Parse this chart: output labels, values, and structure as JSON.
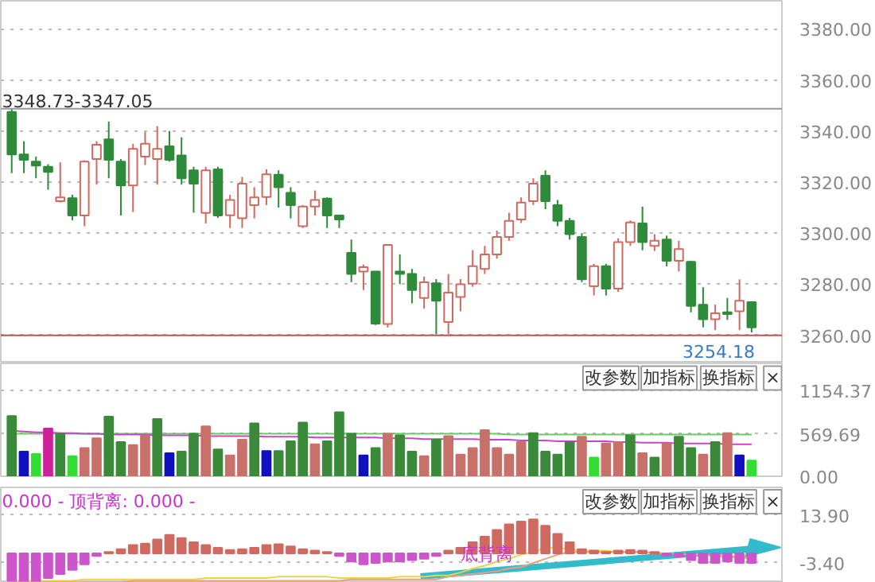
{
  "chart_data": [
    {
      "type": "candlestick",
      "categories": [
        null,
        null,
        null,
        null,
        null,
        null,
        null,
        null,
        null,
        null,
        null,
        null,
        null,
        null,
        null,
        null,
        null,
        null,
        null,
        null,
        null,
        null,
        null,
        null,
        null,
        null,
        null,
        null,
        null,
        null,
        null,
        null,
        null,
        null,
        null,
        null,
        null,
        null,
        null,
        null,
        null,
        null,
        null,
        null,
        null,
        null,
        null,
        null,
        null,
        null,
        null,
        null,
        null,
        null,
        null,
        null,
        null,
        null,
        null,
        null,
        null,
        null
      ],
      "ohlc": [
        [
          3347.5,
          3348.7,
          3323.5,
          3330.8
        ],
        [
          3330.8,
          3336,
          3323.5,
          3328.7
        ],
        [
          3328,
          3330,
          3321.5,
          3326.5
        ],
        [
          3326,
          3327,
          3317,
          3324
        ],
        [
          3312.5,
          3327.7,
          3312,
          3314
        ],
        [
          3313.7,
          3315,
          3305,
          3306.9
        ],
        [
          3306.9,
          3328.5,
          3302.7,
          3328
        ],
        [
          3329,
          3336,
          3319,
          3334.6
        ],
        [
          3336.7,
          3343.7,
          3321.5,
          3328.7
        ],
        [
          3328,
          3329,
          3306.9,
          3318.7
        ],
        [
          3318.7,
          3335,
          3308.3,
          3333
        ],
        [
          3330,
          3339.6,
          3326.7,
          3335
        ],
        [
          3329,
          3341.9,
          3319,
          3333
        ],
        [
          3334,
          3340,
          3328,
          3328.7
        ],
        [
          3330.4,
          3337.5,
          3319,
          3321.5
        ],
        [
          3324.6,
          3326,
          3308,
          3319.4
        ],
        [
          3307.9,
          3326,
          3303.8,
          3324.6
        ],
        [
          3325,
          3326,
          3306,
          3306.9
        ],
        [
          3307,
          3315,
          3302,
          3313
        ],
        [
          3305.8,
          3322,
          3302,
          3319.4
        ],
        [
          3311,
          3318,
          3305.8,
          3314
        ],
        [
          3314.2,
          3325,
          3311,
          3323
        ],
        [
          3322.9,
          3324.6,
          3310,
          3318
        ],
        [
          3315.8,
          3318,
          3305.8,
          3311
        ],
        [
          3302.7,
          3311,
          3302,
          3310.4
        ],
        [
          3310.4,
          3316.7,
          3306.9,
          3313
        ],
        [
          3313.5,
          3314,
          3302,
          3306.9
        ],
        [
          3306.9,
          3307,
          3302,
          3305.4
        ],
        [
          3292.3,
          3297.5,
          3280.8,
          3284
        ],
        [
          3285,
          3287.7,
          3277.7,
          3286.7
        ],
        [
          3285,
          3285,
          3264,
          3264.6
        ],
        [
          3264.4,
          3295.4,
          3263,
          3295.4
        ],
        [
          3285,
          3291.7,
          3280,
          3284
        ],
        [
          3284,
          3286,
          3272.5,
          3277.7
        ],
        [
          3274.6,
          3283,
          3270.4,
          3280.8
        ],
        [
          3280.4,
          3282,
          3260.4,
          3273.5
        ],
        [
          3265.2,
          3284,
          3260.4,
          3276.7
        ],
        [
          3275,
          3282,
          3269.4,
          3280
        ],
        [
          3280.2,
          3293.3,
          3279,
          3287.1
        ],
        [
          3286,
          3295,
          3284,
          3291.7
        ],
        [
          3291.7,
          3301,
          3290,
          3298.5
        ],
        [
          3298.5,
          3308,
          3297,
          3304.8
        ],
        [
          3305.4,
          3314,
          3304,
          3312
        ],
        [
          3312.5,
          3321.5,
          3311,
          3319.4
        ],
        [
          3322.5,
          3324.6,
          3309.4,
          3312.5
        ],
        [
          3311,
          3313,
          3302.7,
          3304.8
        ],
        [
          3304.8,
          3306,
          3297.5,
          3299.6
        ],
        [
          3298.5,
          3300,
          3280.8,
          3281.9
        ],
        [
          3279.2,
          3288,
          3275.6,
          3287.1
        ],
        [
          3287.1,
          3288,
          3275.6,
          3278.3
        ],
        [
          3278.3,
          3298,
          3277,
          3296.5
        ],
        [
          3296.5,
          3305,
          3295,
          3304.2
        ],
        [
          3303.8,
          3310.4,
          3293.3,
          3296.5
        ],
        [
          3295,
          3299.6,
          3293,
          3297
        ],
        [
          3297.5,
          3299,
          3287,
          3289.2
        ],
        [
          3289.2,
          3297,
          3285,
          3293.8
        ],
        [
          3288.8,
          3289,
          3269,
          3271.5
        ],
        [
          3272,
          3278.8,
          3263.1,
          3266.3
        ],
        [
          3266.3,
          3272,
          3262,
          3268.6
        ],
        [
          3269,
          3274.6,
          3266,
          3268.3
        ],
        [
          3269.4,
          3281.9,
          3262,
          3273.5
        ],
        [
          3273,
          3273,
          3261.1,
          3263.1
        ]
      ],
      "colors": [
        "#2e8b3a",
        "#2e8b3a",
        "#2e8b3a",
        "#2e8b3a",
        "#d06a60",
        "#2e8b3a",
        "#d06a60",
        "#d06a60",
        "#2e8b3a",
        "#2e8b3a",
        "#d06a60",
        "#d06a60",
        "#d06a60",
        "#2e8b3a",
        "#2e8b3a",
        "#2e8b3a",
        "#d06a60",
        "#2e8b3a",
        "#d06a60",
        "#d06a60",
        "#d06a60",
        "#d06a60",
        "#2e8b3a",
        "#2e8b3a",
        "#d06a60",
        "#d06a60",
        "#2e8b3a",
        "#2e8b3a",
        "#2e8b3a",
        "#d06a60",
        "#2e8b3a",
        "#d06a60",
        "#2e8b3a",
        "#2e8b3a",
        "#d06a60",
        "#2e8b3a",
        "#d06a60",
        "#d06a60",
        "#d06a60",
        "#d06a60",
        "#d06a60",
        "#d06a60",
        "#d06a60",
        "#d06a60",
        "#2e8b3a",
        "#2e8b3a",
        "#2e8b3a",
        "#2e8b3a",
        "#d06a60",
        "#2e8b3a",
        "#d06a60",
        "#d06a60",
        "#2e8b3a",
        "#d06a60",
        "#2e8b3a",
        "#d06a60",
        "#2e8b3a",
        "#2e8b3a",
        "#d06a60",
        "#2e8b3a",
        "#d06a60",
        "#2e8b3a"
      ],
      "ylim": [
        3249,
        3391
      ],
      "yticks": [
        {
          "value": 3260,
          "label": "3260.00"
        },
        {
          "value": 3280,
          "label": "3280.00"
        },
        {
          "value": 3300,
          "label": "3300.00"
        },
        {
          "value": 3320,
          "label": "3320.00"
        },
        {
          "value": 3340,
          "label": "3340.00"
        },
        {
          "value": 3360,
          "label": "3360.00"
        },
        {
          "value": 3380,
          "label": "3380.00"
        }
      ],
      "grid": "y",
      "tick_labels": "y",
      "ref_lines": [
        {
          "axis": "y",
          "value": 3348.73,
          "label": "3348.73-3347.05",
          "color": "#999999"
        },
        {
          "axis": "y",
          "value": 3260,
          "color": "#c0504d"
        }
      ],
      "annotations": [
        "3254.18"
      ]
    },
    {
      "type": "bar",
      "categories": [
        null,
        null,
        null,
        null,
        null,
        null,
        null,
        null,
        null,
        null,
        null,
        null,
        null,
        null,
        null,
        null,
        null,
        null,
        null,
        null,
        null,
        null,
        null,
        null,
        null,
        null,
        null,
        null,
        null,
        null,
        null,
        null,
        null,
        null,
        null,
        null,
        null,
        null,
        null,
        null,
        null,
        null,
        null,
        null,
        null,
        null,
        null,
        null,
        null,
        null,
        null,
        null,
        null,
        null,
        null,
        null,
        null,
        null,
        null,
        null,
        null,
        null
      ],
      "series": [
        {
          "values": [
            810,
            330,
            300,
            640,
            570,
            270,
            380,
            510,
            800,
            460,
            420,
            550,
            770,
            310,
            330,
            570,
            670,
            360,
            280,
            490,
            710,
            340,
            340,
            470,
            720,
            430,
            470,
            860,
            570,
            280,
            380,
            570,
            550,
            330,
            270,
            490,
            540,
            290,
            380,
            620,
            380,
            290,
            460,
            580,
            330,
            290,
            460,
            530,
            250,
            440,
            460,
            550,
            310,
            250,
            440,
            530,
            380,
            290,
            460,
            580,
            280,
            210
          ],
          "colors": [
            "#3a8a3a",
            "#1010c0",
            "#33dd33",
            "#cc2299",
            "#3a8a3a",
            "#33dd33",
            "#c8706a",
            "#c8706a",
            "#3a8a3a",
            "#3a8a3a",
            "#c8706a",
            "#c8706a",
            "#3a8a3a",
            "#1010c0",
            "#3a8a3a",
            "#3a8a3a",
            "#c8706a",
            "#3a8a3a",
            "#c8706a",
            "#c8706a",
            "#3a8a3a",
            "#1010c0",
            "#3a8a3a",
            "#3a8a3a",
            "#3a8a3a",
            "#c8706a",
            "#3a8a3a",
            "#3a8a3a",
            "#3a8a3a",
            "#1010c0",
            "#3a8a3a",
            "#c8706a",
            "#3a8a3a",
            "#3a8a3a",
            "#c8706a",
            "#3a8a3a",
            "#c8706a",
            "#c8706a",
            "#c8706a",
            "#c8706a",
            "#c8706a",
            "#c8706a",
            "#c8706a",
            "#3a8a3a",
            "#3a8a3a",
            "#3a8a3a",
            "#3a8a3a",
            "#c8706a",
            "#33dd33",
            "#c8706a",
            "#c8706a",
            "#3a8a3a",
            "#c8706a",
            "#3a8a3a",
            "#c8706a",
            "#3a8a3a",
            "#3a8a3a",
            "#c8706a",
            "#3a8a3a",
            "#c8706a",
            "#1010c0",
            "#33dd33"
          ]
        },
        {
          "type": "line",
          "color": "#66cc66",
          "values": [
            570,
            570,
            570,
            570,
            570,
            570,
            570,
            570,
            570,
            570,
            570,
            570,
            570,
            570,
            570,
            570,
            570,
            570,
            570,
            570,
            570,
            570,
            570,
            570,
            570,
            570,
            570,
            570,
            570,
            570,
            570,
            570,
            570,
            570,
            570,
            570,
            570,
            570,
            570,
            570,
            570,
            560,
            560,
            560,
            560,
            560,
            560,
            560,
            560,
            560,
            560,
            560,
            560,
            560,
            560,
            560,
            560,
            560,
            560,
            560,
            560,
            560
          ]
        },
        {
          "type": "line",
          "color": "#cc44cc",
          "values": [
            610,
            600,
            590,
            590,
            580,
            580,
            570,
            570,
            560,
            560,
            560,
            560,
            550,
            550,
            550,
            550,
            540,
            540,
            540,
            540,
            540,
            530,
            530,
            530,
            530,
            520,
            520,
            520,
            520,
            520,
            520,
            510,
            510,
            510,
            500,
            500,
            500,
            500,
            500,
            490,
            490,
            490,
            480,
            480,
            480,
            470,
            470,
            470,
            470,
            470,
            460,
            460,
            450,
            450,
            450,
            440,
            440,
            440,
            440,
            430,
            430,
            430
          ]
        }
      ],
      "ylim": [
        0,
        1516
      ],
      "yticks": [
        {
          "value": 0,
          "label": "0.00"
        },
        {
          "value": 569.69,
          "label": "569.69"
        },
        {
          "value": 1154.37,
          "label": "1154.37"
        }
      ],
      "grid": "y",
      "tick_labels": "y",
      "annotations": [
        "改参数",
        "加指标",
        "换指标",
        "×"
      ]
    },
    {
      "type": "bar",
      "categories": [
        null,
        null,
        null,
        null,
        null,
        null,
        null,
        null,
        null,
        null,
        null,
        null,
        null,
        null,
        null,
        null,
        null,
        null,
        null,
        null,
        null,
        null,
        null,
        null,
        null,
        null,
        null,
        null,
        null,
        null,
        null,
        null,
        null,
        null,
        null,
        null,
        null,
        null,
        null,
        null,
        null,
        null,
        null,
        null,
        null,
        null,
        null,
        null,
        null,
        null,
        null,
        null,
        null,
        null,
        null,
        null,
        null,
        null,
        null,
        null,
        null,
        null
      ],
      "series": [
        {
          "values": [
            -10,
            -10,
            -10,
            -9,
            -7.5,
            -6,
            -4,
            -1,
            0.5,
            1.5,
            3,
            3.5,
            5,
            6.7,
            5.5,
            4,
            3,
            2,
            1.2,
            1.5,
            2,
            3,
            3.3,
            2.5,
            1.5,
            1,
            0.5,
            -1,
            -3,
            -4,
            -3.5,
            -3,
            -3,
            -2.5,
            -2,
            -1,
            1,
            2,
            4,
            6,
            8.5,
            10.5,
            11.5,
            12.3,
            10,
            7,
            4,
            1.5,
            1,
            0.5,
            1,
            1.2,
            1,
            0.5,
            -0.8,
            -1.2,
            -2.5,
            -3.5,
            -3.5,
            -3,
            -3.5,
            -3.5
          ],
          "colors": [
            "#cc55cc",
            "#cc55cc",
            "#cc55cc",
            "#cc55cc",
            "#cc55cc",
            "#cc55cc",
            "#cc55cc",
            "#cc55cc",
            "#d06a60",
            "#d06a60",
            "#d06a60",
            "#d06a60",
            "#d06a60",
            "#d06a60",
            "#d06a60",
            "#d06a60",
            "#d06a60",
            "#d06a60",
            "#d06a60",
            "#d06a60",
            "#d06a60",
            "#d06a60",
            "#d06a60",
            "#d06a60",
            "#d06a60",
            "#d06a60",
            "#d06a60",
            "#cc55cc",
            "#cc55cc",
            "#cc55cc",
            "#cc55cc",
            "#cc55cc",
            "#cc55cc",
            "#cc55cc",
            "#cc55cc",
            "#cc55cc",
            "#d06a60",
            "#d06a60",
            "#d06a60",
            "#d06a60",
            "#d06a60",
            "#d06a60",
            "#d06a60",
            "#d06a60",
            "#d06a60",
            "#d06a60",
            "#d06a60",
            "#d06a60",
            "#d06a60",
            "#d06a60",
            "#d06a60",
            "#d06a60",
            "#d06a60",
            "#d06a60",
            "#cc55cc",
            "#cc55cc",
            "#cc55cc",
            "#cc55cc",
            "#cc55cc",
            "#cc55cc",
            "#cc55cc",
            "#cc55cc"
          ]
        },
        {
          "type": "line",
          "color": "#e8d44d",
          "values": [
            -10,
            -10,
            -10,
            -10,
            -10,
            -10,
            -9.5,
            -9.5,
            -9.5,
            -9.5,
            -9.5,
            -9.5,
            -9.5,
            -9.5,
            -9.5,
            -9.5,
            -9,
            -9,
            -9,
            -9,
            -9,
            -9,
            -8.5,
            -8.5,
            -8.5,
            -8.5,
            -8.5,
            -9,
            -9,
            -9,
            -9,
            -9,
            -8.5,
            -8.5,
            -8.5,
            -8,
            -8,
            -7,
            -5.5,
            -4.5,
            -3,
            -2,
            -0.5,
            0.5,
            2,
            2,
            1.5,
            1,
            1,
            1,
            0.5,
            0.5,
            0.5,
            0,
            0,
            0,
            -0.5,
            -0.5,
            -1,
            -1.5,
            -1.5,
            -2
          ]
        },
        {
          "type": "line",
          "color": "#e8a07a",
          "values": [
            -10.5,
            -10.5,
            -10.5,
            -10.5,
            -10.5,
            -10.5,
            -10.5,
            -10.5,
            -10.5,
            -10.5,
            -10,
            -10,
            -10,
            -10,
            -10,
            -10,
            -10,
            -10,
            -10,
            -10,
            -10,
            -10,
            -10,
            -10,
            -10,
            -10,
            -10,
            -10,
            -9.5,
            -9.5,
            -9.5,
            -9.5,
            -9.5,
            -9.5,
            -9.5,
            -9.5,
            -8.5,
            -8,
            -7.5,
            -7,
            -6.5,
            -5.5,
            -5,
            -3.5,
            -2,
            -0.5,
            0.5,
            0.5,
            0.5,
            0.5,
            0.5,
            0.5,
            0.5,
            0,
            0,
            0,
            -0.5,
            -0.5,
            -1,
            -1,
            -1.5,
            -1.5
          ]
        }
      ],
      "ylim": [
        -10.7,
        23.9
      ],
      "yticks": [
        {
          "value": -3.4,
          "label": "-3.40"
        },
        {
          "value": 13.9,
          "label": "13.90"
        }
      ],
      "grid": "y",
      "tick_labels": "y",
      "annotations": [
        "0.000 - 顶背离: 0.000 -",
        "底背离",
        "改参数",
        "加指标",
        "换指标",
        "×"
      ]
    }
  ]
}
